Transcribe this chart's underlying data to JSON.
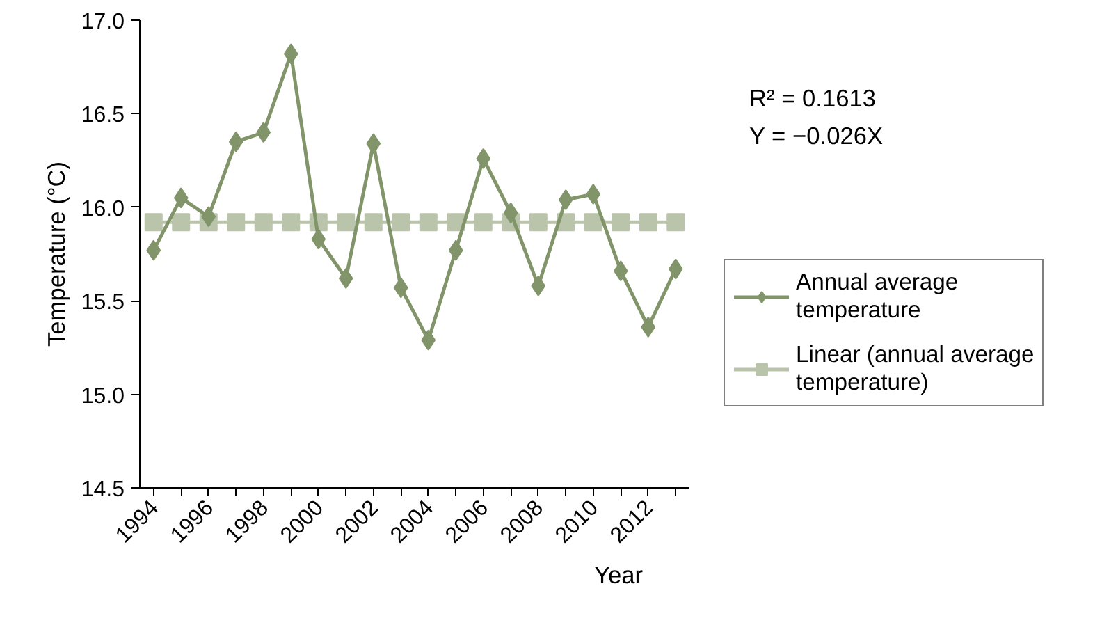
{
  "chart_data": {
    "type": "line",
    "xlabel": "Year",
    "ylabel": "Temperature (°C)",
    "categories": [
      "1994",
      null,
      "1996",
      null,
      "1998",
      null,
      "2000",
      null,
      "2002",
      null,
      "2004",
      null,
      "2006",
      null,
      "2008",
      null,
      "2010",
      null,
      "2012",
      null
    ],
    "series": [
      {
        "name": "Annual average temperature",
        "color": "#82956a",
        "marker": "diamond",
        "values": [
          15.77,
          16.05,
          15.95,
          16.35,
          16.4,
          16.82,
          15.83,
          15.62,
          16.34,
          15.57,
          15.29,
          15.77,
          16.26,
          15.97,
          15.58,
          16.04,
          16.07,
          15.66,
          15.36,
          15.67
        ]
      },
      {
        "name": "Linear (annual average temperature)",
        "color": "#bac4ab",
        "marker": "square",
        "values": [
          15.92,
          15.92,
          15.92,
          15.92,
          15.92,
          15.92,
          15.92,
          15.92,
          15.92,
          15.92,
          15.92,
          15.92,
          15.92,
          15.92,
          15.92,
          15.92,
          15.92,
          15.92,
          15.92,
          15.92
        ]
      }
    ],
    "ylim": [
      14.5,
      17.0
    ],
    "yticks": [
      {
        "value": 14.5,
        "label": "14.5"
      },
      {
        "value": 15,
        "label": "15.0"
      },
      {
        "value": 15.5,
        "label": "15.5"
      },
      {
        "value": 16,
        "label": "16.0"
      },
      {
        "value": 16.5,
        "label": "16.5"
      },
      {
        "value": 17,
        "label": "17.0"
      }
    ],
    "annotations": [
      "R² = 0.1613",
      "Y = −0.026X"
    ],
    "grid": false,
    "legend": "right",
    "line_style": "solid"
  }
}
